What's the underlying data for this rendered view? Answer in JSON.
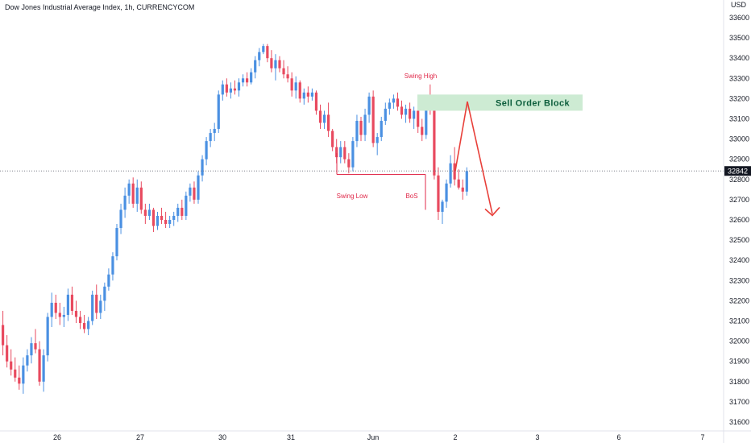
{
  "chart_data": {
    "type": "candlestick",
    "title": "Dow Jones Industrial Average Index, 1h, CURRENCYCOM",
    "currency": "USD",
    "ylim": [
      31550,
      33650
    ],
    "y_ticks": [
      31600,
      31700,
      31800,
      31900,
      32000,
      32100,
      32200,
      32300,
      32400,
      32500,
      32600,
      32700,
      32800,
      32900,
      33000,
      33100,
      33200,
      33300,
      33400,
      33500,
      33600
    ],
    "x_ticks": [
      "26",
      "27",
      "30",
      "31",
      "Jun",
      "2",
      "3",
      "6",
      "7"
    ],
    "last_price": 32842,
    "colors": {
      "up": "#4a90e2",
      "down": "#e84a5f",
      "zone": "#cdebd3",
      "annotation": "#e0294a",
      "arrow": "#e8403a"
    },
    "annotations": {
      "swing_high": "Swing High",
      "swing_low": "Swing Low",
      "bos": "BoS",
      "sell_order_block": "Sell Order Block",
      "zone_range": [
        33140,
        33220
      ],
      "swing_low_level": 32825,
      "projection": [
        32842,
        33185,
        32630
      ]
    },
    "candles": [
      [
        32080,
        32150,
        31930,
        31980
      ],
      [
        31980,
        32030,
        31870,
        31900
      ],
      [
        31900,
        31960,
        31830,
        31860
      ],
      [
        31860,
        31920,
        31800,
        31820
      ],
      [
        31820,
        31880,
        31760,
        31790
      ],
      [
        31790,
        31920,
        31740,
        31880
      ],
      [
        31880,
        31960,
        31850,
        31930
      ],
      [
        31930,
        32020,
        31890,
        31990
      ],
      [
        31990,
        32060,
        31940,
        31960
      ],
      [
        31960,
        32000,
        31780,
        31800
      ],
      [
        31800,
        31960,
        31750,
        31930
      ],
      [
        31930,
        32140,
        31900,
        32120
      ],
      [
        32120,
        32240,
        32070,
        32190
      ],
      [
        32190,
        32230,
        32110,
        32140
      ],
      [
        32140,
        32190,
        32080,
        32120
      ],
      [
        32120,
        32170,
        32070,
        32130
      ],
      [
        32130,
        32260,
        32100,
        32230
      ],
      [
        32230,
        32270,
        32130,
        32150
      ],
      [
        32150,
        32200,
        32090,
        32120
      ],
      [
        32120,
        32150,
        32060,
        32090
      ],
      [
        32090,
        32130,
        32040,
        32060
      ],
      [
        32060,
        32120,
        32030,
        32100
      ],
      [
        32100,
        32250,
        32080,
        32230
      ],
      [
        32230,
        32280,
        32110,
        32140
      ],
      [
        32140,
        32230,
        32110,
        32200
      ],
      [
        32200,
        32290,
        32150,
        32270
      ],
      [
        32270,
        32360,
        32250,
        32330
      ],
      [
        32330,
        32440,
        32300,
        32420
      ],
      [
        32420,
        32580,
        32400,
        32560
      ],
      [
        32560,
        32680,
        32530,
        32650
      ],
      [
        32650,
        32760,
        32610,
        32720
      ],
      [
        32720,
        32800,
        32680,
        32780
      ],
      [
        32780,
        32810,
        32660,
        32680
      ],
      [
        32680,
        32800,
        32640,
        32760
      ],
      [
        32760,
        32790,
        32630,
        32650
      ],
      [
        32650,
        32680,
        32580,
        32620
      ],
      [
        32620,
        32680,
        32600,
        32650
      ],
      [
        32650,
        32660,
        32540,
        32570
      ],
      [
        32570,
        32640,
        32550,
        32620
      ],
      [
        32620,
        32660,
        32580,
        32600
      ],
      [
        32600,
        32640,
        32560,
        32580
      ],
      [
        32580,
        32620,
        32560,
        32600
      ],
      [
        32600,
        32640,
        32570,
        32620
      ],
      [
        32620,
        32680,
        32590,
        32660
      ],
      [
        32660,
        32700,
        32600,
        32620
      ],
      [
        32620,
        32740,
        32600,
        32720
      ],
      [
        32720,
        32780,
        32690,
        32760
      ],
      [
        32760,
        32790,
        32680,
        32700
      ],
      [
        32700,
        32840,
        32680,
        32820
      ],
      [
        32820,
        32920,
        32790,
        32900
      ],
      [
        32900,
        33010,
        32870,
        32990
      ],
      [
        32990,
        33050,
        32960,
        33030
      ],
      [
        33030,
        33080,
        32990,
        33050
      ],
      [
        33050,
        33240,
        33030,
        33220
      ],
      [
        33220,
        33290,
        33190,
        33270
      ],
      [
        33270,
        33300,
        33210,
        33230
      ],
      [
        33230,
        33280,
        33200,
        33250
      ],
      [
        33250,
        33290,
        33220,
        33240
      ],
      [
        33240,
        33300,
        33210,
        33280
      ],
      [
        33280,
        33320,
        33260,
        33300
      ],
      [
        33300,
        33330,
        33260,
        33280
      ],
      [
        33280,
        33350,
        33270,
        33330
      ],
      [
        33330,
        33410,
        33300,
        33390
      ],
      [
        33390,
        33450,
        33360,
        33430
      ],
      [
        33430,
        33470,
        33420,
        33460
      ],
      [
        33460,
        33470,
        33380,
        33400
      ],
      [
        33400,
        33440,
        33330,
        33350
      ],
      [
        33350,
        33420,
        33290,
        33390
      ],
      [
        33390,
        33410,
        33330,
        33350
      ],
      [
        33350,
        33390,
        33300,
        33320
      ],
      [
        33320,
        33360,
        33280,
        33300
      ],
      [
        33300,
        33330,
        33210,
        33240
      ],
      [
        33240,
        33310,
        33200,
        33280
      ],
      [
        33280,
        33290,
        33180,
        33200
      ],
      [
        33200,
        33250,
        33170,
        33230
      ],
      [
        33230,
        33260,
        33180,
        33210
      ],
      [
        33210,
        33250,
        33190,
        33230
      ],
      [
        33230,
        33240,
        33120,
        33140
      ],
      [
        33140,
        33170,
        33050,
        33080
      ],
      [
        33080,
        33140,
        33050,
        33120
      ],
      [
        33120,
        33180,
        33010,
        33040
      ],
      [
        33040,
        33050,
        32940,
        32960
      ],
      [
        32960,
        33000,
        32880,
        32910
      ],
      [
        32910,
        32990,
        32880,
        32960
      ],
      [
        32960,
        32990,
        32880,
        32900
      ],
      [
        32900,
        32930,
        32830,
        32860
      ],
      [
        32860,
        33010,
        32840,
        32990
      ],
      [
        32990,
        33120,
        32960,
        33090
      ],
      [
        33090,
        33110,
        32990,
        33020
      ],
      [
        33020,
        33150,
        32990,
        33120
      ],
      [
        33120,
        33230,
        33080,
        33210
      ],
      [
        33210,
        33240,
        32960,
        32980
      ],
      [
        32980,
        33030,
        32920,
        33010
      ],
      [
        33010,
        33110,
        32990,
        33090
      ],
      [
        33090,
        33180,
        33070,
        33150
      ],
      [
        33150,
        33200,
        33120,
        33180
      ],
      [
        33180,
        33220,
        33150,
        33200
      ],
      [
        33200,
        33230,
        33140,
        33160
      ],
      [
        33160,
        33190,
        33100,
        33120
      ],
      [
        33120,
        33170,
        33080,
        33150
      ],
      [
        33150,
        33180,
        33080,
        33100
      ],
      [
        33100,
        33160,
        33050,
        33140
      ],
      [
        33140,
        33150,
        33030,
        33060
      ],
      [
        33060,
        33100,
        32990,
        33020
      ],
      [
        33020,
        33200,
        33000,
        33170
      ],
      [
        33170,
        33270,
        33120,
        33140
      ],
      [
        33140,
        33160,
        32800,
        32820
      ],
      [
        32820,
        32860,
        32600,
        32640
      ],
      [
        32640,
        32700,
        32580,
        32690
      ],
      [
        32690,
        32800,
        32660,
        32780
      ],
      [
        32780,
        32920,
        32760,
        32880
      ],
      [
        32880,
        32960,
        32770,
        32800
      ],
      [
        32800,
        32850,
        32750,
        32760
      ],
      [
        32760,
        32800,
        32700,
        32740
      ],
      [
        32740,
        32860,
        32720,
        32842
      ]
    ]
  }
}
